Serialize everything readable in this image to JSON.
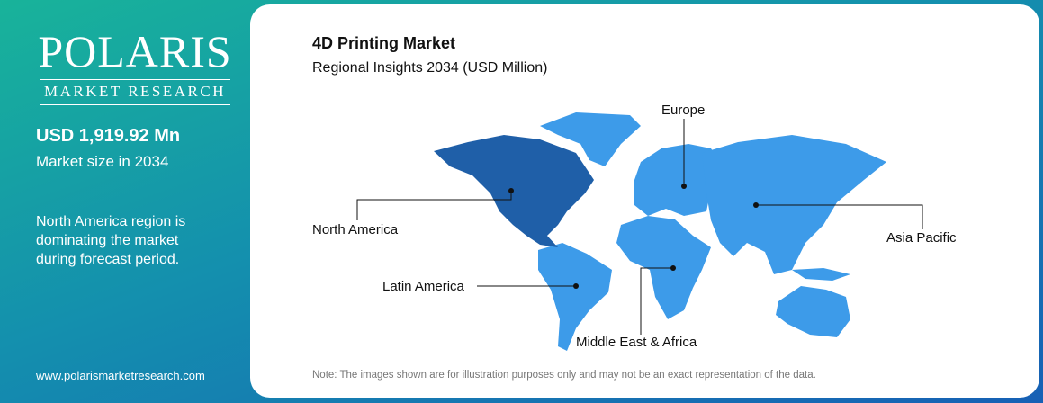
{
  "sidebar": {
    "logo": "POLARIS",
    "logo_tagline": "MARKET RESEARCH",
    "market_value": "USD 1,919.92 Mn",
    "market_value_caption": "Market size in 2034",
    "statement": "North America region is dominating the market during forecast period.",
    "website": "www.polarismarketresearch.com"
  },
  "main": {
    "title": "4D Printing Market",
    "subtitle": "Regional Insights 2034 (USD Million)",
    "regions": [
      "Europe",
      "North America",
      "Asia Pacific",
      "Latin America",
      "Middle East & Africa"
    ],
    "note": "Note: The images shown are for illustration purposes only and may not be an exact representation of the data."
  }
}
